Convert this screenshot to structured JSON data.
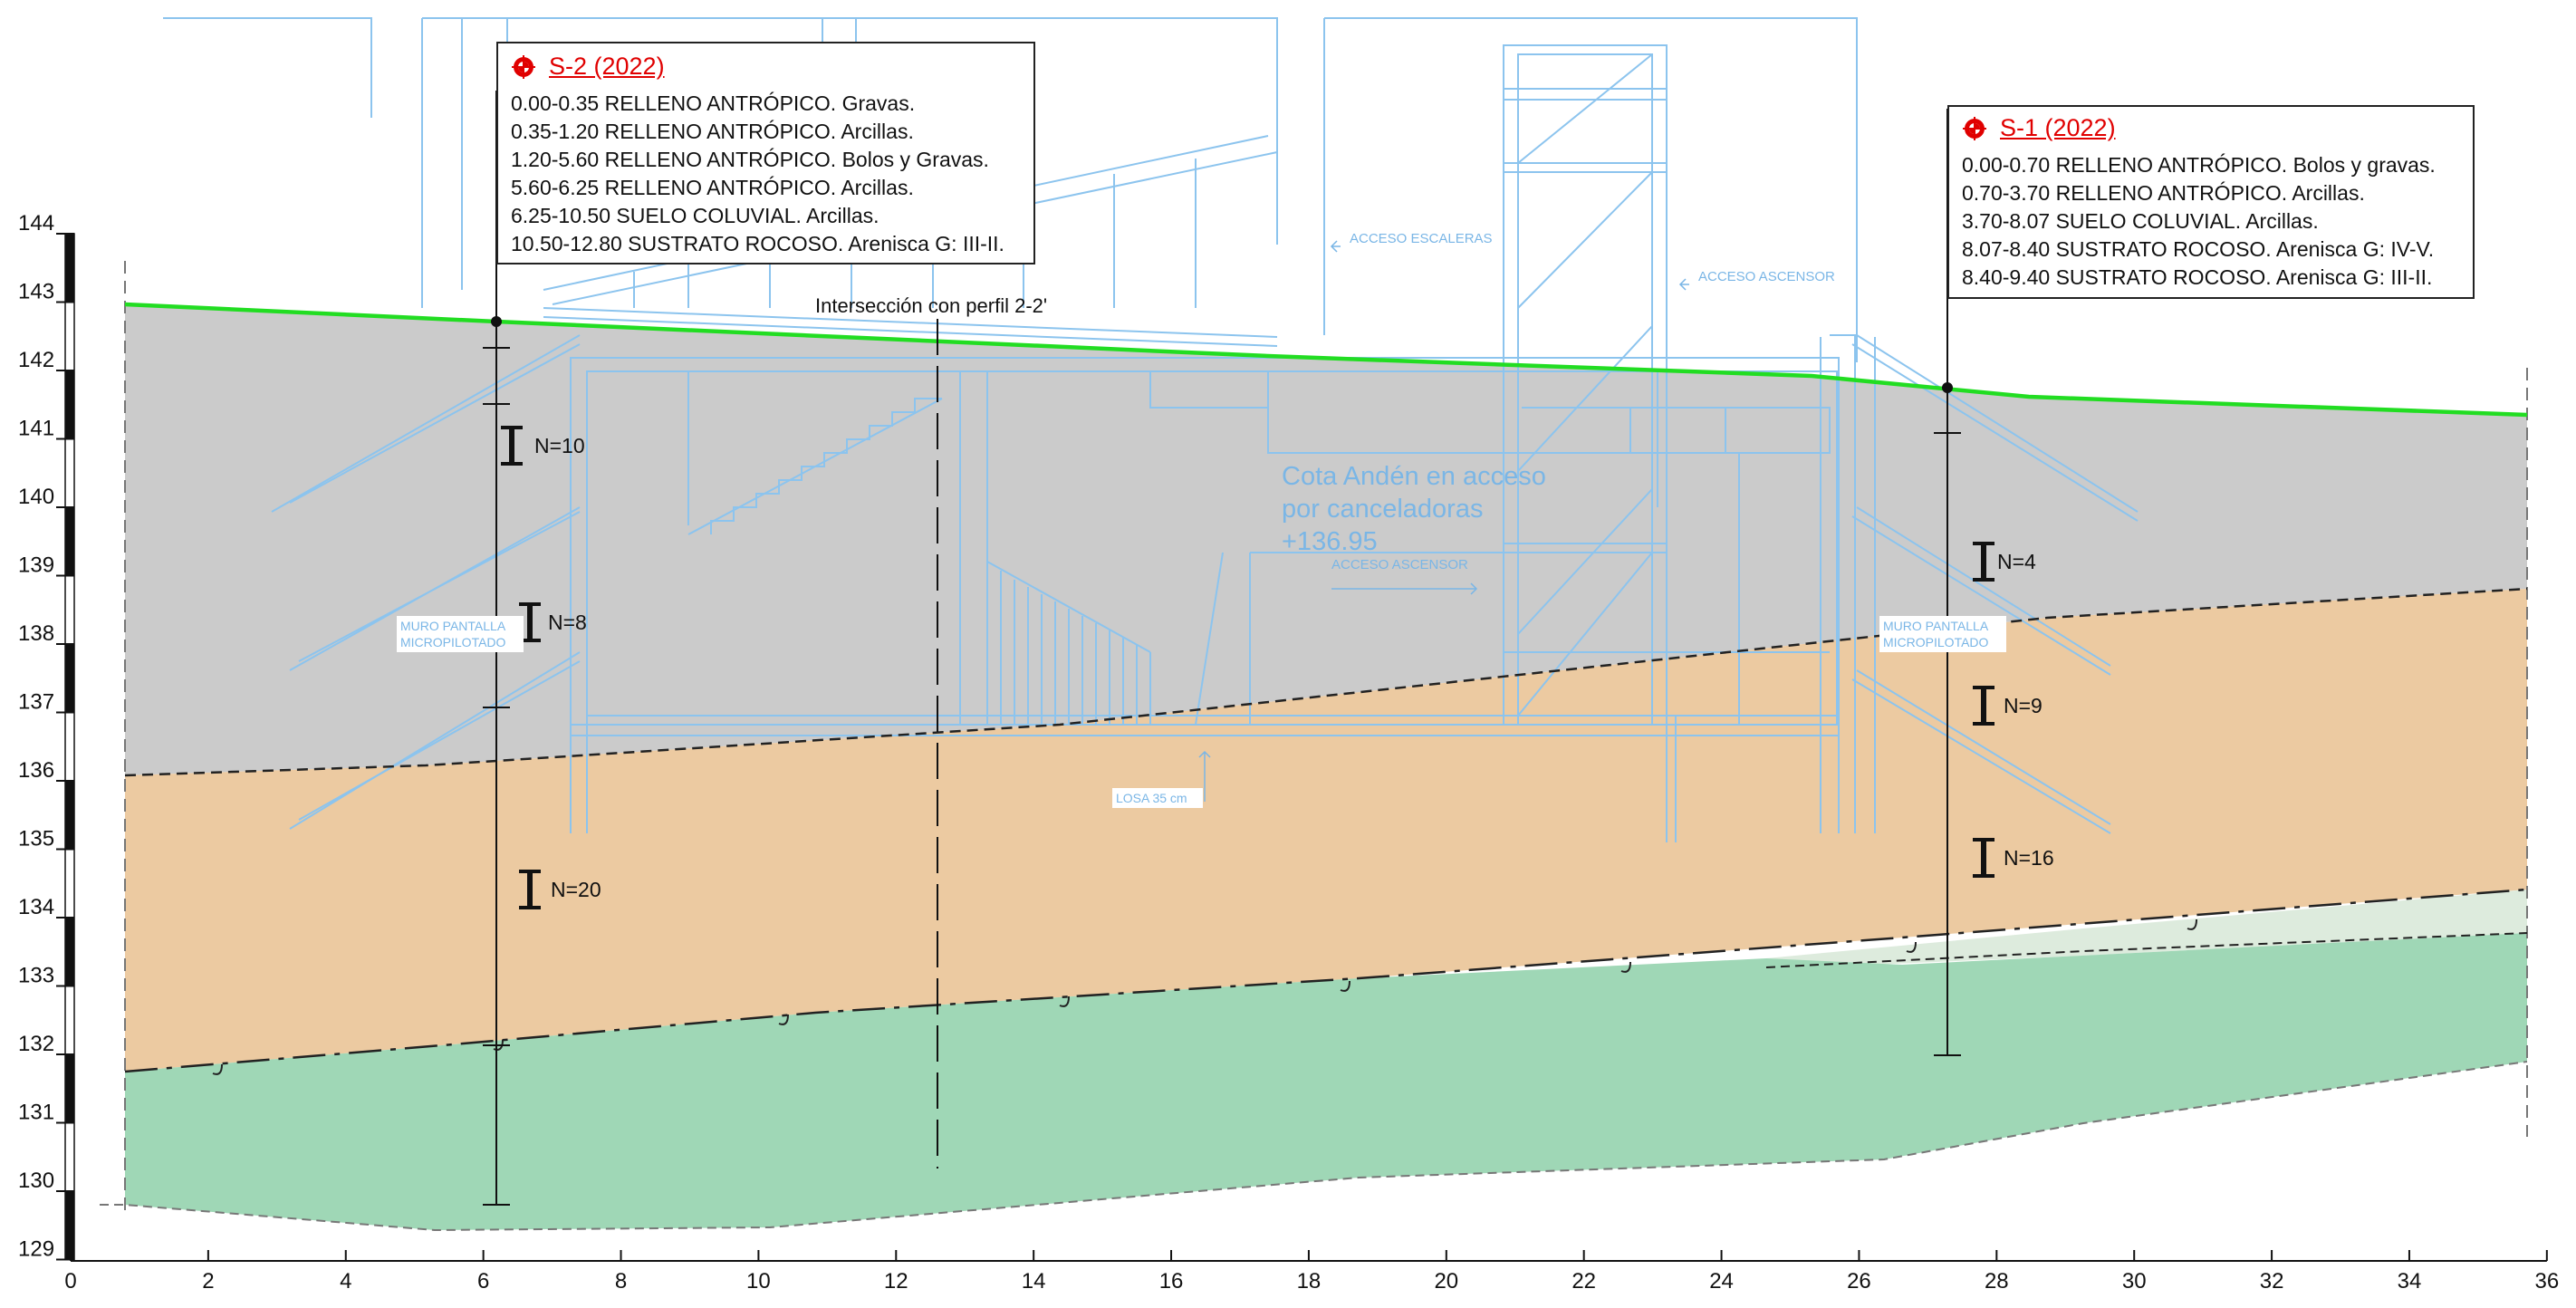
{
  "elevation_axis": {
    "ticks": [
      144,
      143,
      142,
      141,
      140,
      139,
      138,
      137,
      136,
      135,
      134,
      133,
      132,
      131,
      130,
      129
    ]
  },
  "distance_axis": {
    "ticks": [
      0,
      2,
      4,
      6,
      8,
      10,
      12,
      14,
      16,
      18,
      20,
      22,
      24,
      26,
      28,
      30,
      32,
      34,
      36
    ]
  },
  "boreholes": [
    {
      "title": "S-2 (2022)",
      "lines": [
        "0.00-0.35 RELLENO ANTRÓPICO. Gravas.",
        "0.35-1.20 RELLENO ANTRÓPICO. Arcillas.",
        "1.20-5.60 RELLENO ANTRÓPICO. Bolos y Gravas.",
        "5.60-6.25 RELLENO ANTRÓPICO. Arcillas.",
        "6.25-10.50 SUELO COLUVIAL. Arcillas.",
        "10.50-12.80 SUSTRATO ROCOSO. Arenisca G: III-II."
      ],
      "spt": [
        "N=10",
        "N=8",
        "N=20"
      ]
    },
    {
      "title": "S-1 (2022)",
      "lines": [
        "0.00-0.70 RELLENO ANTRÓPICO. Bolos y gravas.",
        "0.70-3.70 RELLENO ANTRÓPICO. Arcillas.",
        "3.70-8.07 SUELO COLUVIAL. Arcillas.",
        "8.07-8.40 SUSTRATO ROCOSO. Arenisca G: IV-V.",
        "8.40-9.40 SUSTRATO ROCOSO. Arenisca G: III-II."
      ],
      "spt": [
        "N=4",
        "N=9",
        "N=16"
      ]
    }
  ],
  "annotations": {
    "intersection": "Intersección con perfil 2-2'",
    "cota_line1": "Cota Andén en acceso",
    "cota_line2": "por canceladoras",
    "cota_line3": "+136.95",
    "acceso_escaleras": "ACCESO ESCALERAS",
    "acceso_ascensor_1": "ACCESO ASCENSOR",
    "acceso_ascensor_2": "ACCESO ASCENSOR",
    "muro_left_1": "MURO PANTALLA",
    "muro_left_2": "MICROPILOTADO",
    "muro_right_1": "MURO PANTALLA",
    "muro_right_2": "MICROPILOTADO",
    "losa": "LOSA 35 cm"
  },
  "colors": {
    "fill_layer": "#cbcbcb",
    "colluvium_layer": "#eccaa1",
    "weathered_rock_layer": "#ddebdd",
    "rock_layer": "#9fd7b6",
    "ground_line": "#22dd22",
    "structure": "#8cc4ee",
    "borehole_title": "#e00000"
  }
}
